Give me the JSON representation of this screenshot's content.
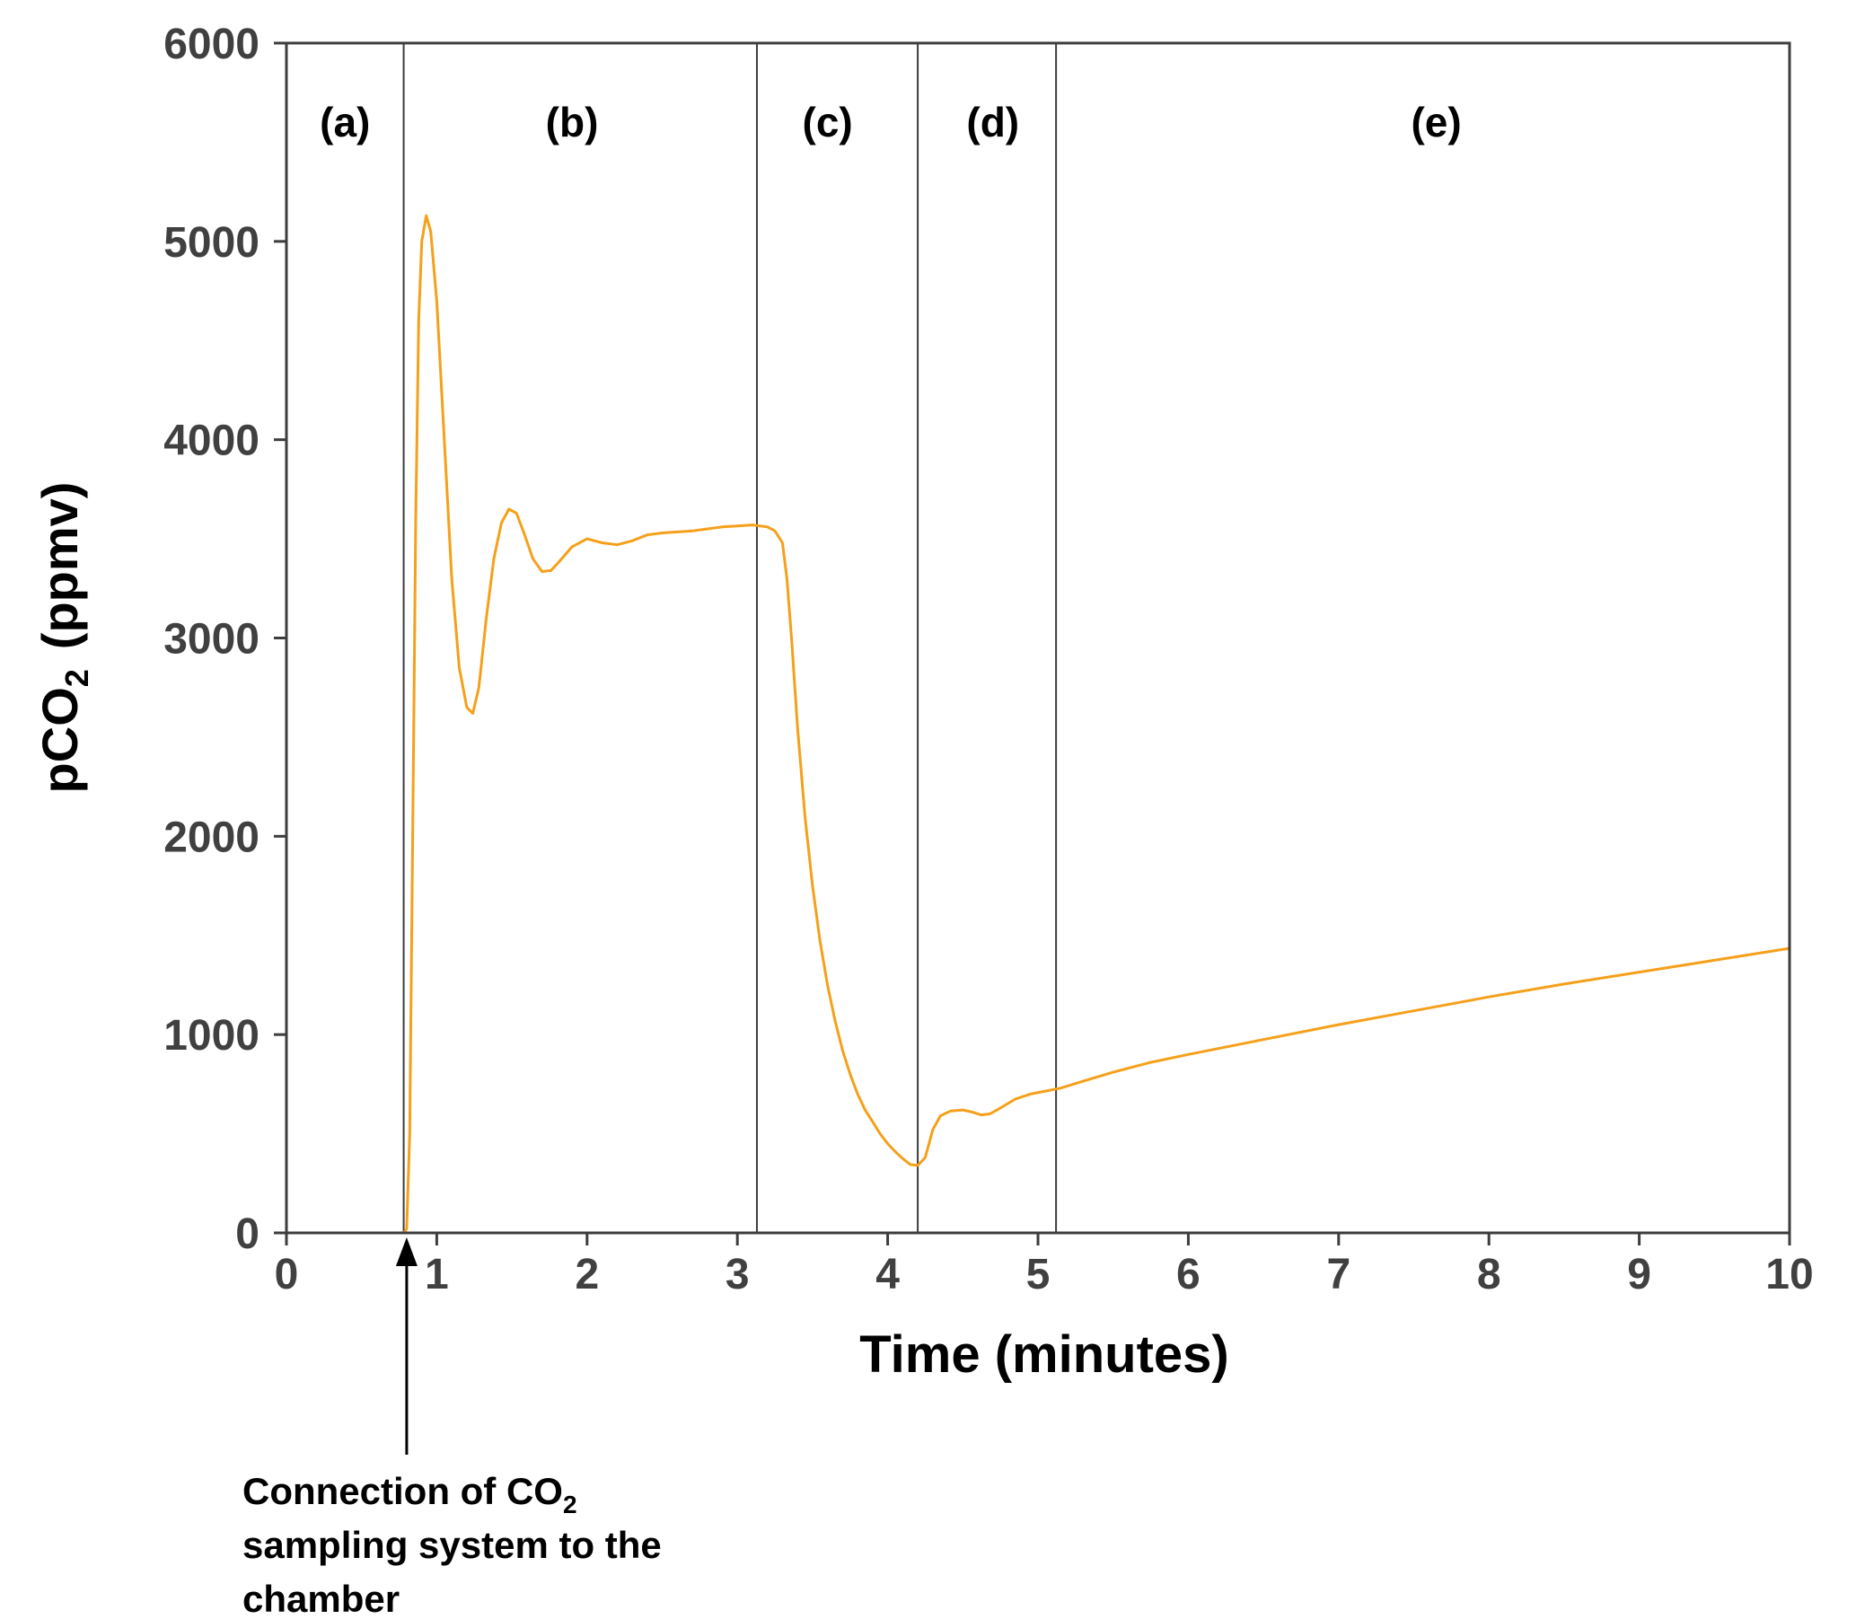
{
  "chart_data": {
    "type": "line",
    "xlabel": "Time (minutes)",
    "ylabel": {
      "main": "pCO",
      "sub": "2",
      "unit": "(ppmv)"
    },
    "xlim": [
      0,
      10
    ],
    "ylim": [
      0,
      6000
    ],
    "x_ticks": [
      0,
      1,
      2,
      3,
      4,
      5,
      6,
      7,
      8,
      9,
      10
    ],
    "y_ticks": [
      0,
      1000,
      2000,
      3000,
      4000,
      5000,
      6000
    ],
    "grid": false,
    "legend": "none",
    "phase_boundaries": [
      0.78,
      3.13,
      4.2,
      5.12
    ],
    "phases": [
      {
        "label": "(a)",
        "x": 0.39
      },
      {
        "label": "(b)",
        "x": 1.9
      },
      {
        "label": "(c)",
        "x": 3.6
      },
      {
        "label": "(d)",
        "x": 4.7
      },
      {
        "label": "(e)",
        "x": 7.65
      }
    ],
    "series": [
      {
        "color": "#f5a01a",
        "points": [
          [
            0,
            0
          ],
          [
            0.78,
            0
          ],
          [
            0.8,
            20
          ],
          [
            0.82,
            500
          ],
          [
            0.84,
            2000
          ],
          [
            0.86,
            3600
          ],
          [
            0.88,
            4600
          ],
          [
            0.9,
            5000
          ],
          [
            0.93,
            5130
          ],
          [
            0.96,
            5050
          ],
          [
            1.0,
            4700
          ],
          [
            1.05,
            4000
          ],
          [
            1.1,
            3300
          ],
          [
            1.15,
            2850
          ],
          [
            1.2,
            2650
          ],
          [
            1.24,
            2620
          ],
          [
            1.28,
            2750
          ],
          [
            1.33,
            3100
          ],
          [
            1.38,
            3400
          ],
          [
            1.43,
            3580
          ],
          [
            1.48,
            3650
          ],
          [
            1.53,
            3630
          ],
          [
            1.58,
            3530
          ],
          [
            1.64,
            3400
          ],
          [
            1.7,
            3335
          ],
          [
            1.76,
            3340
          ],
          [
            1.82,
            3390
          ],
          [
            1.9,
            3460
          ],
          [
            2.0,
            3500
          ],
          [
            2.1,
            3480
          ],
          [
            2.2,
            3470
          ],
          [
            2.3,
            3490
          ],
          [
            2.4,
            3520
          ],
          [
            2.5,
            3530
          ],
          [
            2.6,
            3535
          ],
          [
            2.7,
            3540
          ],
          [
            2.8,
            3550
          ],
          [
            2.9,
            3560
          ],
          [
            3.0,
            3565
          ],
          [
            3.1,
            3570
          ],
          [
            3.2,
            3560
          ],
          [
            3.25,
            3540
          ],
          [
            3.3,
            3480
          ],
          [
            3.33,
            3300
          ],
          [
            3.36,
            3000
          ],
          [
            3.4,
            2550
          ],
          [
            3.45,
            2100
          ],
          [
            3.5,
            1750
          ],
          [
            3.55,
            1470
          ],
          [
            3.6,
            1250
          ],
          [
            3.65,
            1070
          ],
          [
            3.7,
            920
          ],
          [
            3.75,
            800
          ],
          [
            3.8,
            700
          ],
          [
            3.85,
            620
          ],
          [
            3.9,
            560
          ],
          [
            3.95,
            500
          ],
          [
            4.0,
            450
          ],
          [
            4.05,
            410
          ],
          [
            4.1,
            375
          ],
          [
            4.15,
            345
          ],
          [
            4.2,
            340
          ],
          [
            4.25,
            380
          ],
          [
            4.3,
            520
          ],
          [
            4.35,
            590
          ],
          [
            4.42,
            615
          ],
          [
            4.5,
            620
          ],
          [
            4.56,
            610
          ],
          [
            4.62,
            595
          ],
          [
            4.68,
            600
          ],
          [
            4.75,
            630
          ],
          [
            4.85,
            675
          ],
          [
            4.95,
            700
          ],
          [
            5.05,
            715
          ],
          [
            5.15,
            730
          ],
          [
            5.3,
            765
          ],
          [
            5.5,
            810
          ],
          [
            5.75,
            860
          ],
          [
            6.0,
            900
          ],
          [
            6.5,
            975
          ],
          [
            7.0,
            1050
          ],
          [
            7.5,
            1120
          ],
          [
            8.0,
            1190
          ],
          [
            8.5,
            1255
          ],
          [
            9.0,
            1315
          ],
          [
            9.5,
            1375
          ],
          [
            10.0,
            1435
          ]
        ]
      }
    ],
    "annotation": {
      "x": 0.8,
      "lines": [
        {
          "text": "Connection of CO",
          "sub": "2"
        },
        {
          "text": "sampling system to the"
        },
        {
          "text": "chamber"
        }
      ]
    }
  }
}
